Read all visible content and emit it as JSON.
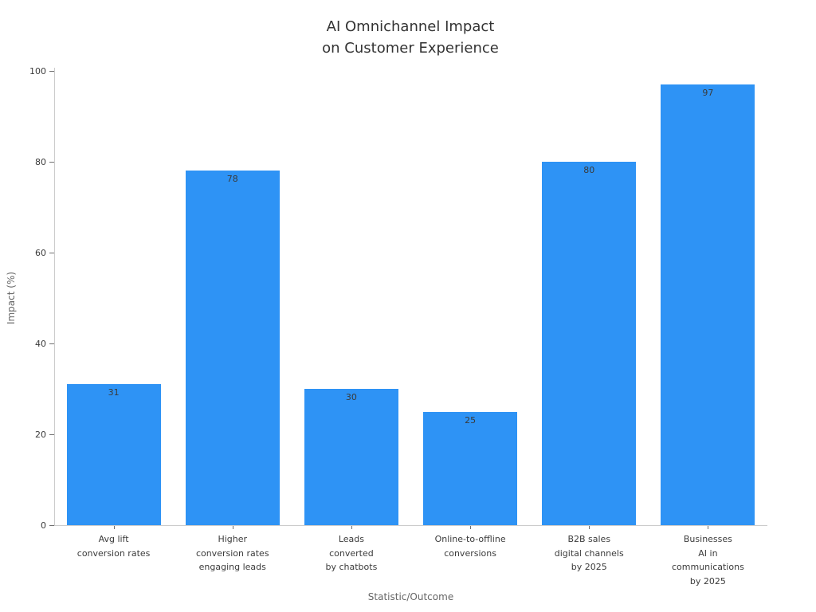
{
  "chart_data": {
    "type": "bar",
    "title": "AI Omnichannel Impact\non Customer Experience",
    "xlabel": "Statistic/Outcome",
    "ylabel": "Impact (%)",
    "categories": [
      "Avg lift\nconversion rates",
      "Higher\nconversion rates\nengaging leads",
      "Leads\nconverted\nby chatbots",
      "Online-to-offline\nconversions",
      "B2B sales\ndigital channels\nby 2025",
      "Businesses\nAI in\ncommunications\nby 2025"
    ],
    "values": [
      31,
      78,
      30,
      25,
      80,
      97
    ],
    "value_labels": [
      "31",
      "78",
      "30",
      "25",
      "80",
      "97"
    ],
    "yticks": [
      0,
      20,
      40,
      60,
      80,
      100
    ],
    "ylim": [
      0,
      100
    ],
    "bar_color": "#2E93F5",
    "grid": false,
    "legend": "none",
    "value_label_position": "inside-top"
  }
}
